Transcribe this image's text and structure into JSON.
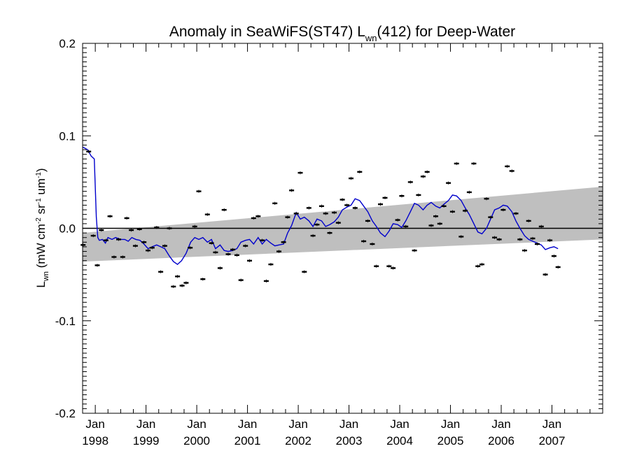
{
  "chart_data": {
    "type": "scatter",
    "title": {
      "main": "Anomaly in SeaWiFS(ST47) L",
      "sub": "wn",
      "rest": "(412) for Deep-Water"
    },
    "ylabel": {
      "parts": [
        {
          "t": "L",
          "s": "n"
        },
        {
          "t": "wn",
          "s": "sub"
        },
        {
          "t": " (mW cm",
          "s": "n"
        },
        {
          "t": "-2",
          "s": "sup"
        },
        {
          "t": " sr",
          "s": "n"
        },
        {
          "t": "-1",
          "s": "sup"
        },
        {
          "t": " um",
          "s": "n"
        },
        {
          "t": "-1",
          "s": "sup"
        },
        {
          "t": ")",
          "s": "n"
        }
      ]
    },
    "xlim": [
      1997.75,
      2008.0
    ],
    "ylim": [
      -0.2,
      0.2
    ],
    "y_ticks": [
      {
        "value": 0.2,
        "label": "0.2"
      },
      {
        "value": 0.1,
        "label": "0.1"
      },
      {
        "value": 0.0,
        "label": "0.0"
      },
      {
        "value": -0.1,
        "label": "-0.1"
      },
      {
        "value": -0.2,
        "label": "-0.2"
      }
    ],
    "x_ticks": [
      {
        "value": 1998.0,
        "month": "Jan",
        "year": "1998"
      },
      {
        "value": 1999.0,
        "month": "Jan",
        "year": "1999"
      },
      {
        "value": 2000.0,
        "month": "Jan",
        "year": "2000"
      },
      {
        "value": 2001.0,
        "month": "Jan",
        "year": "2001"
      },
      {
        "value": 2002.0,
        "month": "Jan",
        "year": "2002"
      },
      {
        "value": 2003.0,
        "month": "Jan",
        "year": "2003"
      },
      {
        "value": 2004.0,
        "month": "Jan",
        "year": "2004"
      },
      {
        "value": 2005.0,
        "month": "Jan",
        "year": "2005"
      },
      {
        "value": 2006.0,
        "month": "Jan",
        "year": "2006"
      },
      {
        "value": 2007.0,
        "month": "Jan",
        "year": "2007"
      }
    ],
    "zero_line": 0.0,
    "grid": false,
    "band": {
      "upper": [
        [
          1997.75,
          -0.005
        ],
        [
          2008.0,
          0.045
        ]
      ],
      "lower": [
        [
          1997.75,
          -0.036
        ],
        [
          2008.0,
          -0.012
        ]
      ],
      "color": "#bfbfbf"
    },
    "colors": {
      "points": "#000000",
      "line": "#0000cc",
      "zero_line": "#000000"
    },
    "series": [
      {
        "type": "scatter_errorbar",
        "points": [
          [
            1997.76,
            -0.018
          ],
          [
            1997.87,
            0.083
          ],
          [
            1997.96,
            -0.008
          ],
          [
            1998.04,
            -0.04
          ],
          [
            1998.12,
            -0.002
          ],
          [
            1998.21,
            -0.013
          ],
          [
            1998.29,
            0.013
          ],
          [
            1998.37,
            -0.031
          ],
          [
            1998.46,
            -0.012
          ],
          [
            1998.54,
            -0.031
          ],
          [
            1998.62,
            0.011
          ],
          [
            1998.71,
            -0.002
          ],
          [
            1998.79,
            -0.019
          ],
          [
            1998.87,
            -0.001
          ],
          [
            1998.96,
            -0.015
          ],
          [
            1999.04,
            -0.024
          ],
          [
            1999.12,
            -0.021
          ],
          [
            1999.21,
            0.001
          ],
          [
            1999.29,
            -0.047
          ],
          [
            1999.37,
            -0.019
          ],
          [
            1999.46,
            0.0
          ],
          [
            1999.54,
            -0.063
          ],
          [
            1999.62,
            -0.052
          ],
          [
            1999.71,
            -0.062
          ],
          [
            1999.79,
            -0.059
          ],
          [
            1999.87,
            -0.021
          ],
          [
            1999.96,
            0.002
          ],
          [
            2000.04,
            0.04
          ],
          [
            2000.12,
            -0.055
          ],
          [
            2000.21,
            0.015
          ],
          [
            2000.29,
            -0.016
          ],
          [
            2000.37,
            -0.026
          ],
          [
            2000.46,
            -0.043
          ],
          [
            2000.54,
            0.02
          ],
          [
            2000.62,
            -0.028
          ],
          [
            2000.71,
            -0.023
          ],
          [
            2000.79,
            -0.029
          ],
          [
            2000.87,
            -0.056
          ],
          [
            2000.96,
            -0.019
          ],
          [
            2001.04,
            -0.035
          ],
          [
            2001.12,
            0.011
          ],
          [
            2001.21,
            0.013
          ],
          [
            2001.29,
            -0.013
          ],
          [
            2001.37,
            -0.057
          ],
          [
            2001.46,
            -0.039
          ],
          [
            2001.54,
            0.027
          ],
          [
            2001.62,
            -0.025
          ],
          [
            2001.71,
            -0.015
          ],
          [
            2001.79,
            0.012
          ],
          [
            2001.87,
            0.041
          ],
          [
            2001.96,
            0.016
          ],
          [
            2002.04,
            0.06
          ],
          [
            2002.12,
            -0.047
          ],
          [
            2002.21,
            0.022
          ],
          [
            2002.29,
            -0.008
          ],
          [
            2002.37,
            0.004
          ],
          [
            2002.46,
            0.024
          ],
          [
            2002.54,
            0.016
          ],
          [
            2002.62,
            -0.005
          ],
          [
            2002.71,
            0.017
          ],
          [
            2002.79,
            0.006
          ],
          [
            2002.87,
            0.031
          ],
          [
            2002.96,
            0.025
          ],
          [
            2003.04,
            0.054
          ],
          [
            2003.12,
            0.022
          ],
          [
            2003.21,
            0.061
          ],
          [
            2003.29,
            -0.014
          ],
          [
            2003.37,
            0.008
          ],
          [
            2003.46,
            -0.017
          ],
          [
            2003.54,
            -0.041
          ],
          [
            2003.62,
            0.026
          ],
          [
            2003.71,
            0.033
          ],
          [
            2003.79,
            -0.041
          ],
          [
            2003.87,
            -0.043
          ],
          [
            2003.96,
            0.009
          ],
          [
            2004.04,
            0.035
          ],
          [
            2004.12,
            0.002
          ],
          [
            2004.21,
            0.05
          ],
          [
            2004.29,
            -0.024
          ],
          [
            2004.37,
            0.036
          ],
          [
            2004.46,
            0.056
          ],
          [
            2004.54,
            0.061
          ],
          [
            2004.62,
            0.003
          ],
          [
            2004.71,
            0.013
          ],
          [
            2004.79,
            0.005
          ],
          [
            2004.87,
            0.024
          ],
          [
            2004.96,
            0.049
          ],
          [
            2005.04,
            0.018
          ],
          [
            2005.12,
            0.07
          ],
          [
            2005.21,
            -0.009
          ],
          [
            2005.29,
            0.019
          ],
          [
            2005.37,
            0.039
          ],
          [
            2005.46,
            0.07
          ],
          [
            2005.54,
            -0.041
          ],
          [
            2005.62,
            -0.039
          ],
          [
            2005.71,
            0.032
          ],
          [
            2005.79,
            0.012
          ],
          [
            2005.87,
            -0.01
          ],
          [
            2005.96,
            -0.012
          ],
          [
            2006.04,
            0.02
          ],
          [
            2006.12,
            0.067
          ],
          [
            2006.21,
            0.062
          ],
          [
            2006.29,
            0.016
          ],
          [
            2006.37,
            -0.012
          ],
          [
            2006.46,
            -0.024
          ],
          [
            2006.54,
            0.008
          ],
          [
            2006.62,
            -0.011
          ],
          [
            2006.71,
            -0.017
          ],
          [
            2006.79,
            0.002
          ],
          [
            2006.87,
            -0.05
          ],
          [
            2006.96,
            -0.013
          ],
          [
            2007.04,
            -0.03
          ],
          [
            2007.12,
            -0.042
          ]
        ]
      },
      {
        "type": "line",
        "points": [
          [
            1997.75,
            0.088
          ],
          [
            1997.85,
            0.085
          ],
          [
            1997.92,
            0.078
          ],
          [
            1997.98,
            0.075
          ],
          [
            1998.02,
            0.012
          ],
          [
            1998.05,
            -0.01
          ],
          [
            1998.08,
            -0.013
          ],
          [
            1998.14,
            -0.012
          ],
          [
            1998.2,
            -0.016
          ],
          [
            1998.25,
            -0.01
          ],
          [
            1998.33,
            -0.012
          ],
          [
            1998.4,
            -0.01
          ],
          [
            1998.5,
            -0.012
          ],
          [
            1998.58,
            -0.012
          ],
          [
            1998.65,
            -0.014
          ],
          [
            1998.72,
            -0.01
          ],
          [
            1998.8,
            -0.012
          ],
          [
            1998.88,
            -0.013
          ],
          [
            1998.96,
            -0.017
          ],
          [
            1999.04,
            -0.022
          ],
          [
            1999.12,
            -0.02
          ],
          [
            1999.21,
            -0.018
          ],
          [
            1999.29,
            -0.02
          ],
          [
            1999.37,
            -0.022
          ],
          [
            1999.46,
            -0.03
          ],
          [
            1999.54,
            -0.036
          ],
          [
            1999.62,
            -0.039
          ],
          [
            1999.7,
            -0.035
          ],
          [
            1999.79,
            -0.027
          ],
          [
            1999.88,
            -0.015
          ],
          [
            1999.96,
            -0.01
          ],
          [
            2000.04,
            -0.012
          ],
          [
            2000.12,
            -0.01
          ],
          [
            2000.21,
            -0.015
          ],
          [
            2000.29,
            -0.012
          ],
          [
            2000.37,
            -0.022
          ],
          [
            2000.46,
            -0.018
          ],
          [
            2000.54,
            -0.024
          ],
          [
            2000.62,
            -0.025
          ],
          [
            2000.71,
            -0.024
          ],
          [
            2000.79,
            -0.022
          ],
          [
            2000.87,
            -0.015
          ],
          [
            2000.96,
            -0.013
          ],
          [
            2001.04,
            -0.012
          ],
          [
            2001.12,
            -0.017
          ],
          [
            2001.21,
            -0.01
          ],
          [
            2001.29,
            -0.017
          ],
          [
            2001.37,
            -0.012
          ],
          [
            2001.46,
            -0.016
          ],
          [
            2001.54,
            -0.019
          ],
          [
            2001.62,
            -0.018
          ],
          [
            2001.71,
            -0.017
          ],
          [
            2001.79,
            -0.005
          ],
          [
            2001.87,
            0.003
          ],
          [
            2001.96,
            0.017
          ],
          [
            2002.04,
            0.01
          ],
          [
            2002.12,
            0.012
          ],
          [
            2002.21,
            0.008
          ],
          [
            2002.29,
            0.002
          ],
          [
            2002.37,
            0.01
          ],
          [
            2002.46,
            0.008
          ],
          [
            2002.54,
            0.002
          ],
          [
            2002.62,
            0.004
          ],
          [
            2002.71,
            0.007
          ],
          [
            2002.79,
            0.012
          ],
          [
            2002.87,
            0.02
          ],
          [
            2002.96,
            0.023
          ],
          [
            2003.04,
            0.025
          ],
          [
            2003.12,
            0.032
          ],
          [
            2003.21,
            0.03
          ],
          [
            2003.29,
            0.024
          ],
          [
            2003.37,
            0.018
          ],
          [
            2003.46,
            0.008
          ],
          [
            2003.54,
            0.002
          ],
          [
            2003.62,
            -0.005
          ],
          [
            2003.71,
            -0.009
          ],
          [
            2003.79,
            -0.003
          ],
          [
            2003.87,
            0.005
          ],
          [
            2003.96,
            0.004
          ],
          [
            2004.04,
            0.001
          ],
          [
            2004.12,
            0.008
          ],
          [
            2004.21,
            0.018
          ],
          [
            2004.29,
            0.027
          ],
          [
            2004.37,
            0.025
          ],
          [
            2004.46,
            0.02
          ],
          [
            2004.54,
            0.025
          ],
          [
            2004.62,
            0.028
          ],
          [
            2004.71,
            0.024
          ],
          [
            2004.79,
            0.022
          ],
          [
            2004.87,
            0.026
          ],
          [
            2004.96,
            0.03
          ],
          [
            2005.04,
            0.036
          ],
          [
            2005.12,
            0.035
          ],
          [
            2005.21,
            0.03
          ],
          [
            2005.29,
            0.022
          ],
          [
            2005.37,
            0.015
          ],
          [
            2005.46,
            0.005
          ],
          [
            2005.54,
            -0.004
          ],
          [
            2005.62,
            -0.006
          ],
          [
            2005.71,
            0.0
          ],
          [
            2005.79,
            0.01
          ],
          [
            2005.87,
            0.02
          ],
          [
            2005.96,
            0.022
          ],
          [
            2006.04,
            0.025
          ],
          [
            2006.12,
            0.024
          ],
          [
            2006.21,
            0.018
          ],
          [
            2006.29,
            0.008
          ],
          [
            2006.37,
            0.0
          ],
          [
            2006.46,
            -0.008
          ],
          [
            2006.54,
            -0.012
          ],
          [
            2006.62,
            -0.014
          ],
          [
            2006.71,
            -0.016
          ],
          [
            2006.79,
            -0.018
          ],
          [
            2006.87,
            -0.023
          ],
          [
            2006.96,
            -0.021
          ],
          [
            2007.04,
            -0.02
          ],
          [
            2007.12,
            -0.022
          ]
        ]
      }
    ]
  }
}
